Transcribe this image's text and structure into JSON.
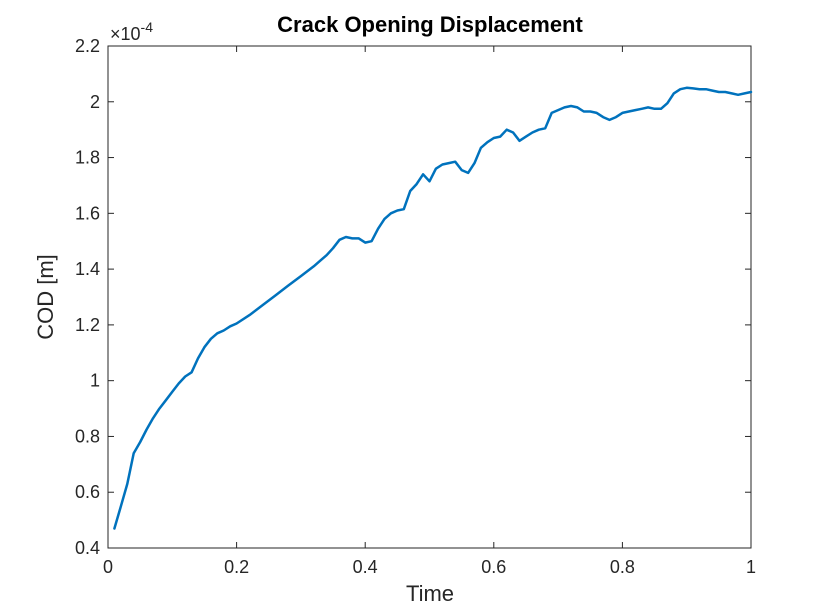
{
  "chart_data": {
    "type": "line",
    "title": "Crack Opening Displacement",
    "xlabel": "Time",
    "ylabel": "COD [m]",
    "y_exponent_label": "×10",
    "y_exponent": "-4",
    "xlim": [
      0,
      1
    ],
    "ylim": [
      0.4,
      2.2
    ],
    "grid": false,
    "x_ticks": [
      "0",
      "0.2",
      "0.4",
      "0.6",
      "0.8",
      "1"
    ],
    "x_tick_values": [
      0,
      0.2,
      0.4,
      0.6,
      0.8,
      1
    ],
    "y_ticks": [
      "0.4",
      "0.6",
      "0.8",
      "1",
      "1.2",
      "1.4",
      "1.6",
      "1.8",
      "2",
      "2.2"
    ],
    "y_tick_values": [
      0.4,
      0.6,
      0.8,
      1.0,
      1.2,
      1.4,
      1.6,
      1.8,
      2.0,
      2.2
    ],
    "series": [
      {
        "color": "#0072BD",
        "x": [
          0.01,
          0.02,
          0.03,
          0.04,
          0.05,
          0.06,
          0.07,
          0.08,
          0.09,
          0.1,
          0.11,
          0.12,
          0.13,
          0.14,
          0.15,
          0.16,
          0.17,
          0.18,
          0.19,
          0.2,
          0.22,
          0.24,
          0.26,
          0.28,
          0.3,
          0.32,
          0.33,
          0.34,
          0.35,
          0.36,
          0.37,
          0.38,
          0.39,
          0.4,
          0.41,
          0.42,
          0.43,
          0.44,
          0.45,
          0.46,
          0.47,
          0.48,
          0.49,
          0.5,
          0.51,
          0.52,
          0.53,
          0.54,
          0.55,
          0.56,
          0.57,
          0.58,
          0.59,
          0.6,
          0.61,
          0.62,
          0.63,
          0.64,
          0.65,
          0.66,
          0.67,
          0.68,
          0.69,
          0.7,
          0.71,
          0.72,
          0.73,
          0.74,
          0.75,
          0.76,
          0.77,
          0.78,
          0.79,
          0.8,
          0.81,
          0.82,
          0.83,
          0.84,
          0.85,
          0.86,
          0.87,
          0.88,
          0.89,
          0.9,
          0.91,
          0.92,
          0.93,
          0.94,
          0.95,
          0.96,
          0.97,
          0.98,
          0.99,
          1.0
        ],
        "y": [
          0.47,
          0.55,
          0.63,
          0.74,
          0.78,
          0.825,
          0.865,
          0.9,
          0.93,
          0.96,
          0.99,
          1.015,
          1.03,
          1.08,
          1.12,
          1.15,
          1.17,
          1.18,
          1.195,
          1.205,
          1.235,
          1.27,
          1.305,
          1.34,
          1.375,
          1.41,
          1.43,
          1.45,
          1.475,
          1.505,
          1.515,
          1.51,
          1.51,
          1.495,
          1.5,
          1.545,
          1.58,
          1.6,
          1.61,
          1.615,
          1.68,
          1.705,
          1.74,
          1.715,
          1.76,
          1.775,
          1.78,
          1.785,
          1.755,
          1.745,
          1.78,
          1.835,
          1.855,
          1.87,
          1.875,
          1.9,
          1.89,
          1.86,
          1.875,
          1.89,
          1.9,
          1.905,
          1.96,
          1.97,
          1.98,
          1.985,
          1.98,
          1.965,
          1.965,
          1.96,
          1.945,
          1.935,
          1.945,
          1.96,
          1.965,
          1.97,
          1.975,
          1.98,
          1.975,
          1.975,
          1.995,
          2.03,
          2.045,
          2.05,
          2.048,
          2.045,
          2.045,
          2.04,
          2.035,
          2.035,
          2.03,
          2.025,
          2.03,
          2.035
        ]
      }
    ]
  }
}
